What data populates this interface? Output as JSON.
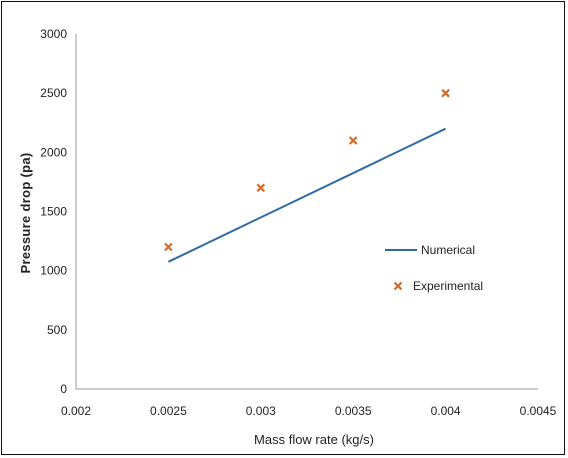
{
  "chart_data": {
    "type": "scatter",
    "title": "",
    "xlabel": "Mass flow rate (kg/s)",
    "ylabel": "Pressure drop (pa)",
    "xlim": [
      0.002,
      0.0045
    ],
    "ylim": [
      0,
      3000
    ],
    "x_ticks": [
      "0.002",
      "0.0025",
      "0.003",
      "0.0035",
      "0.004",
      "0.0045"
    ],
    "y_ticks": [
      "0",
      "500",
      "1000",
      "1500",
      "2000",
      "2500",
      "3000"
    ],
    "grid": false,
    "legend_position": "right",
    "series": [
      {
        "name": "Numerical",
        "kind": "line",
        "color": "#2e6aa6",
        "x": [
          0.0025,
          0.004
        ],
        "y": [
          1075,
          2200
        ]
      },
      {
        "name": "Experimental",
        "kind": "marker",
        "marker": "x",
        "color": "#d36b2b",
        "x": [
          0.0025,
          0.003,
          0.0035,
          0.004
        ],
        "y": [
          1200,
          1700,
          2100,
          2500
        ]
      }
    ]
  }
}
